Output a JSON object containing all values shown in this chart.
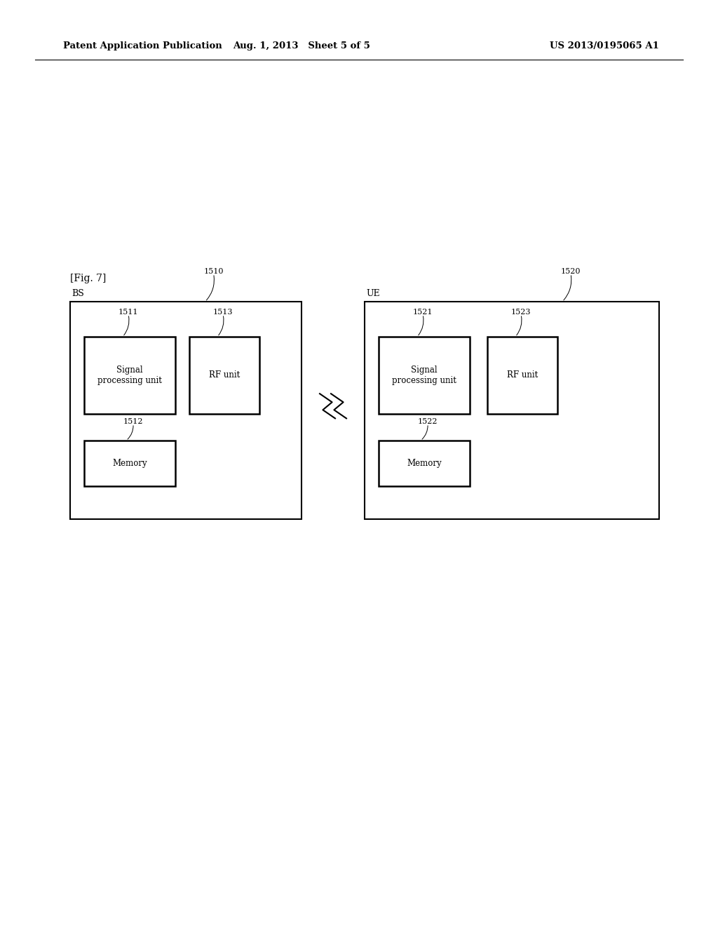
{
  "background_color": "#ffffff",
  "header_left": "Patent Application Publication",
  "header_mid": "Aug. 1, 2013   Sheet 5 of 5",
  "header_right": "US 2013/0195065 A1",
  "fig_label": "[Fig. 7]",
  "bs_label": "BS",
  "ue_label": "UE",
  "bs_number": "1510",
  "ue_number": "1520",
  "bs_spu_label": "Signal\nprocessing unit",
  "bs_spu_number": "1511",
  "bs_rf_label": "RF unit",
  "bs_rf_number": "1513",
  "bs_mem_label": "Memory",
  "bs_mem_number": "1512",
  "ue_spu_label": "Signal\nprocessing unit",
  "ue_spu_number": "1521",
  "ue_rf_label": "RF unit",
  "ue_rf_number": "1523",
  "ue_mem_label": "Memory",
  "ue_mem_number": "1522",
  "font_size_header": 9.5,
  "font_size_label": 9,
  "font_size_box": 8.5,
  "font_size_number": 8
}
